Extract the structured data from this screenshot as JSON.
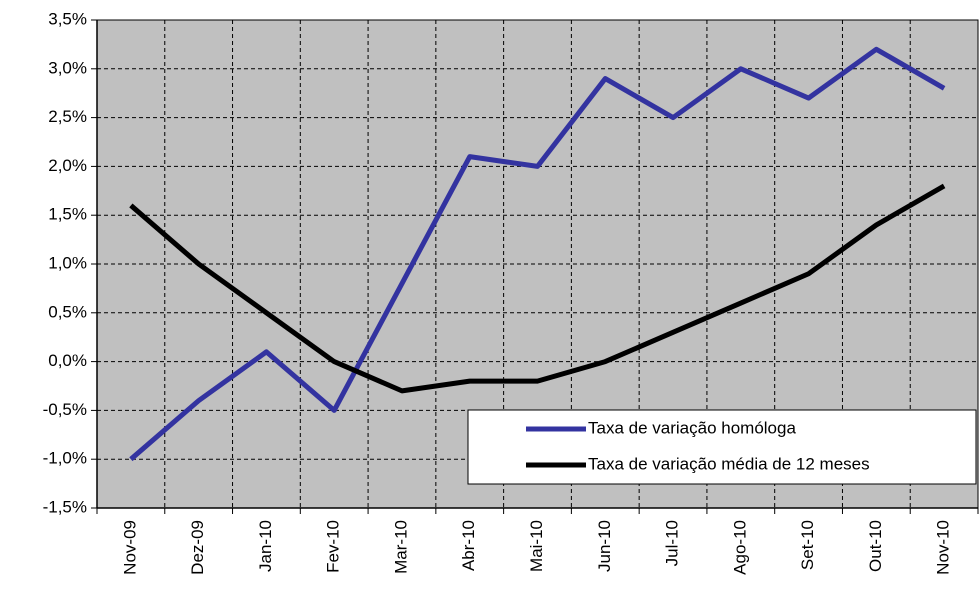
{
  "chart_data": {
    "type": "line",
    "categories": [
      "Nov-09",
      "Dez-09",
      "Jan-10",
      "Fev-10",
      "Mar-10",
      "Abr-10",
      "Mai-10",
      "Jun-10",
      "Jul-10",
      "Ago-10",
      "Set-10",
      "Out-10",
      "Nov-10"
    ],
    "series": [
      {
        "name": "Taxa de variação homóloga",
        "color": "#3333a0",
        "values": [
          -1.0,
          -0.4,
          0.1,
          -0.5,
          0.8,
          2.1,
          2.0,
          2.9,
          2.5,
          3.0,
          2.7,
          3.2,
          2.8
        ]
      },
      {
        "name": "Taxa de variação média de 12 meses",
        "color": "#000000",
        "values": [
          1.6,
          1.0,
          0.5,
          0.0,
          -0.3,
          -0.2,
          -0.2,
          0.0,
          0.3,
          0.6,
          0.9,
          1.4,
          1.8
        ]
      }
    ],
    "ylim": [
      -1.5,
      3.5
    ],
    "yticks": [
      {
        "value": -1.5,
        "label": "-1,5%"
      },
      {
        "value": -1.0,
        "label": "-1,0%"
      },
      {
        "value": -0.5,
        "label": "-0,5%"
      },
      {
        "value": 0.0,
        "label": "0,0%"
      },
      {
        "value": 0.5,
        "label": "0,5%"
      },
      {
        "value": 1.0,
        "label": "1,0%"
      },
      {
        "value": 1.5,
        "label": "1,5%"
      },
      {
        "value": 2.0,
        "label": "2,0%"
      },
      {
        "value": 2.5,
        "label": "2,5%"
      },
      {
        "value": 3.0,
        "label": "3,0%"
      },
      {
        "value": 3.5,
        "label": "3,5%"
      }
    ],
    "grid": true,
    "background": "#c0c0c0",
    "legend": "lower right"
  }
}
